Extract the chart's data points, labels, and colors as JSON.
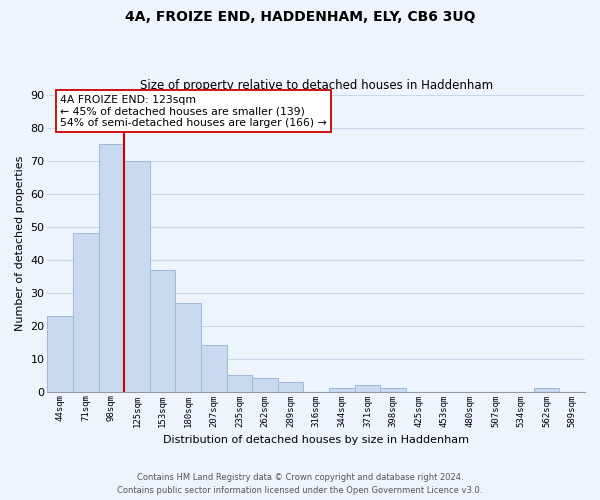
{
  "title": "4A, FROIZE END, HADDENHAM, ELY, CB6 3UQ",
  "subtitle": "Size of property relative to detached houses in Haddenham",
  "xlabel": "Distribution of detached houses by size in Haddenham",
  "ylabel": "Number of detached properties",
  "bin_labels": [
    "44sqm",
    "71sqm",
    "98sqm",
    "125sqm",
    "153sqm",
    "180sqm",
    "207sqm",
    "235sqm",
    "262sqm",
    "289sqm",
    "316sqm",
    "344sqm",
    "371sqm",
    "398sqm",
    "425sqm",
    "453sqm",
    "480sqm",
    "507sqm",
    "534sqm",
    "562sqm",
    "589sqm"
  ],
  "bar_heights": [
    23,
    48,
    75,
    70,
    37,
    27,
    14,
    5,
    4,
    3,
    0,
    1,
    2,
    1,
    0,
    0,
    0,
    0,
    0,
    1,
    0
  ],
  "bar_color": "#c8d9f0",
  "bar_edge_color": "#a0b8d8",
  "grid_color": "#c8d8ec",
  "background_color": "#eef4fb",
  "vline_color": "#cc0000",
  "annotation_text": "4A FROIZE END: 123sqm\n← 45% of detached houses are smaller (139)\n54% of semi-detached houses are larger (166) →",
  "annotation_box_color": "#ffffff",
  "annotation_box_edge": "#cc0000",
  "footer_line1": "Contains HM Land Registry data © Crown copyright and database right 2024.",
  "footer_line2": "Contains public sector information licensed under the Open Government Licence v3.0.",
  "ylim": [
    0,
    90
  ],
  "yticks": [
    0,
    10,
    20,
    30,
    40,
    50,
    60,
    70,
    80,
    90
  ]
}
